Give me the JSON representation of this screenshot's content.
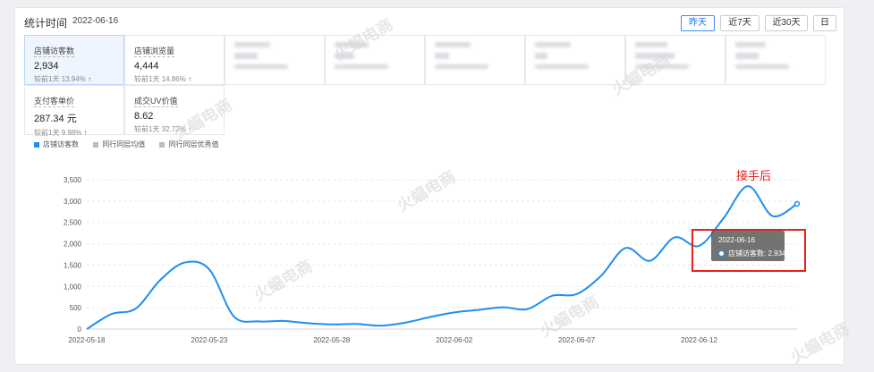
{
  "header": {
    "title": "统计时间",
    "date": "2022-06-16"
  },
  "range_buttons": [
    {
      "label": "昨天",
      "active": true
    },
    {
      "label": "近7天",
      "active": false
    },
    {
      "label": "近30天",
      "active": false
    },
    {
      "label": "日",
      "active": false
    }
  ],
  "metrics": [
    {
      "label": "店铺访客数",
      "value": "2,934",
      "compare_label": "较前1天",
      "compare_value": "13.94%",
      "trend": "up",
      "selected": true
    },
    {
      "label": "店铺浏览量",
      "value": "4,444",
      "compare_label": "较前1天",
      "compare_value": "14.86%",
      "trend": "up",
      "selected": false
    },
    {
      "label": "支付客单价",
      "value": "287.34 元",
      "compare_label": "较前1天",
      "compare_value": "9.98%",
      "trend": "up",
      "selected": false
    },
    {
      "label": "成交UV价值",
      "value": "8.62",
      "compare_label": "较前1天",
      "compare_value": "32.72%",
      "trend": "up",
      "selected": false
    }
  ],
  "legend": [
    {
      "name": "店铺访客数",
      "color": "#1e8ef0"
    },
    {
      "name": "同行同层均值",
      "color": "#b9bcc2"
    },
    {
      "name": "同行同层优秀值",
      "color": "#b9bcc2"
    }
  ],
  "chart_data": {
    "type": "line",
    "x": [
      "2022-05-18",
      "2022-05-19",
      "2022-05-20",
      "2022-05-21",
      "2022-05-22",
      "2022-05-23",
      "2022-05-24",
      "2022-05-25",
      "2022-05-26",
      "2022-05-27",
      "2022-05-28",
      "2022-05-29",
      "2022-05-30",
      "2022-05-31",
      "2022-06-01",
      "2022-06-02",
      "2022-06-03",
      "2022-06-04",
      "2022-06-05",
      "2022-06-06",
      "2022-06-07",
      "2022-06-08",
      "2022-06-09",
      "2022-06-10",
      "2022-06-11",
      "2022-06-12",
      "2022-06-13",
      "2022-06-14",
      "2022-06-15",
      "2022-06-16"
    ],
    "series": [
      {
        "name": "店铺访客数",
        "color": "#1e8ef0",
        "values": [
          0,
          350,
          480,
          1150,
          1560,
          1400,
          300,
          180,
          190,
          140,
          110,
          120,
          80,
          150,
          280,
          390,
          450,
          510,
          470,
          780,
          820,
          1250,
          1900,
          1600,
          2150,
          1950,
          2600,
          3350,
          2650,
          2934
        ]
      }
    ],
    "ylim": [
      0,
      3500
    ],
    "yticks": [
      "3,500",
      "3,000",
      "2,500",
      "2,000",
      "1,500",
      "1,000",
      "500",
      "0"
    ],
    "xticks": [
      "2022-05-18",
      "2022-05-23",
      "2022-05-28",
      "2022-06-02",
      "2022-06-07",
      "2022-06-12"
    ],
    "grid": "horizontal dashed",
    "xlabel": "",
    "ylabel": ""
  },
  "tooltip": {
    "date": "2022-06-16",
    "series": "店铺访客数",
    "value": "2,934"
  },
  "annotation": "接手后",
  "watermark": "火蝠电商"
}
